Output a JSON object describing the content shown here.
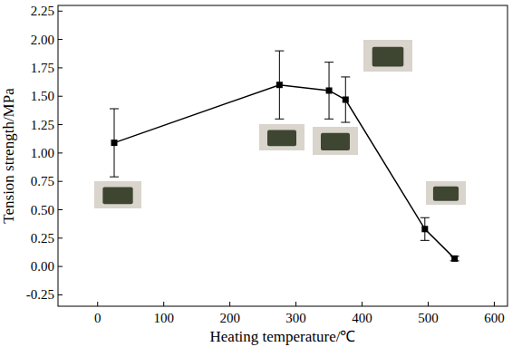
{
  "chart_data": {
    "type": "line",
    "x_label": "Heating temperature/℃",
    "y_label": "Tension strength/MPa",
    "x": [
      25,
      275,
      350,
      375,
      495,
      540
    ],
    "series": [
      {
        "values": [
          1.09,
          1.6,
          1.55,
          1.47,
          0.33,
          0.07
        ],
        "errors": [
          0.3,
          0.3,
          0.25,
          0.2,
          0.1,
          0.02
        ],
        "color": "#000000",
        "marker": "square",
        "line_style": "solid"
      }
    ],
    "xlim": [
      -60,
      620
    ],
    "xticks": [
      0,
      100,
      200,
      300,
      400,
      500,
      600
    ],
    "ylim": [
      -0.35,
      2.3
    ],
    "yticks": [
      -0.25,
      {
        "value": 0,
        "label": "0.00"
      },
      0.25,
      {
        "value": 0.5,
        "label": "0.50"
      },
      0.75,
      {
        "value": 1,
        "label": "1.00"
      },
      1.25,
      {
        "value": 1.5,
        "label": "1.50"
      },
      1.75,
      {
        "value": 2,
        "label": "2.00"
      },
      2.25
    ],
    "grid": false
  }
}
